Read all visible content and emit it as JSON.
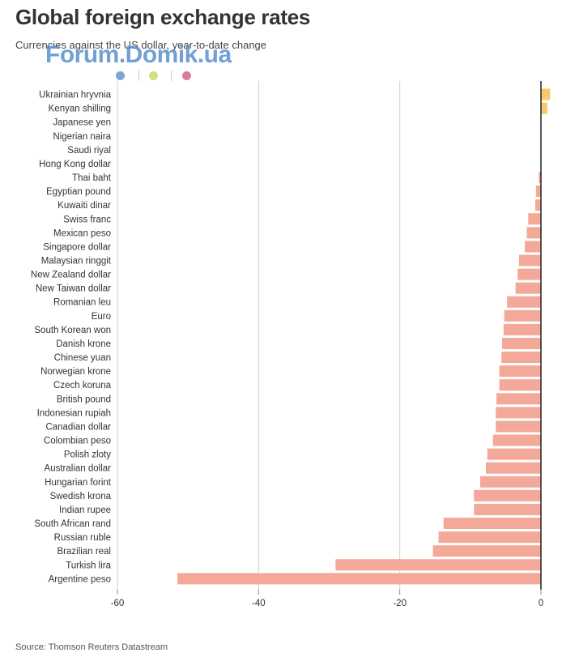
{
  "title": "Global foreign exchange rates",
  "subtitle": "Currencies against the US dollar, year-to-date change",
  "watermark": "Forum.Domik.ua",
  "source": "Source: Thomson Reuters Datastream",
  "colors": {
    "positive": "#f6c96b",
    "negative": "#f4a898",
    "legend": [
      "#7ba7d4",
      "#d6dd84",
      "#d97f97"
    ]
  },
  "chart_data": {
    "type": "bar",
    "orientation": "horizontal",
    "title": "Global foreign exchange rates",
    "subtitle": "Currencies against the US dollar, year-to-date change",
    "xlim": [
      -60,
      0
    ],
    "xticks": [
      -60,
      -40,
      -20,
      0
    ],
    "grid": true,
    "categories": [
      "Ukrainian hryvnia",
      "Kenyan shilling",
      "Japanese yen",
      "Nigerian naira",
      "Saudi riyal",
      "Hong Kong dollar",
      "Thai baht",
      "Egyptian pound",
      "Kuwaiti dinar",
      "Swiss franc",
      "Mexican peso",
      "Singapore dollar",
      "Malaysian ringgit",
      "New Zealand dollar",
      "New Taiwan dollar",
      "Romanian leu",
      "Euro",
      "South Korean won",
      "Danish krone",
      "Chinese yuan",
      "Norwegian krone",
      "Czech koruna",
      "British pound",
      "Indonesian rupiah",
      "Canadian dollar",
      "Colombian peso",
      "Polish zloty",
      "Australian dollar",
      "Hungarian forint",
      "Swedish krona",
      "Indian rupee",
      "South African rand",
      "Russian ruble",
      "Brazilian real",
      "Turkish lira",
      "Argentine peso"
    ],
    "values": [
      1.3,
      0.9,
      0,
      0,
      0,
      0,
      -0.3,
      -0.7,
      -0.8,
      -1.8,
      -2.0,
      -2.3,
      -3.1,
      -3.3,
      -3.6,
      -4.8,
      -5.2,
      -5.3,
      -5.5,
      -5.6,
      -5.9,
      -5.9,
      -6.3,
      -6.4,
      -6.4,
      -6.8,
      -7.6,
      -7.8,
      -8.6,
      -9.5,
      -9.5,
      -13.8,
      -14.5,
      -15.3,
      -29.1,
      -51.5
    ]
  }
}
